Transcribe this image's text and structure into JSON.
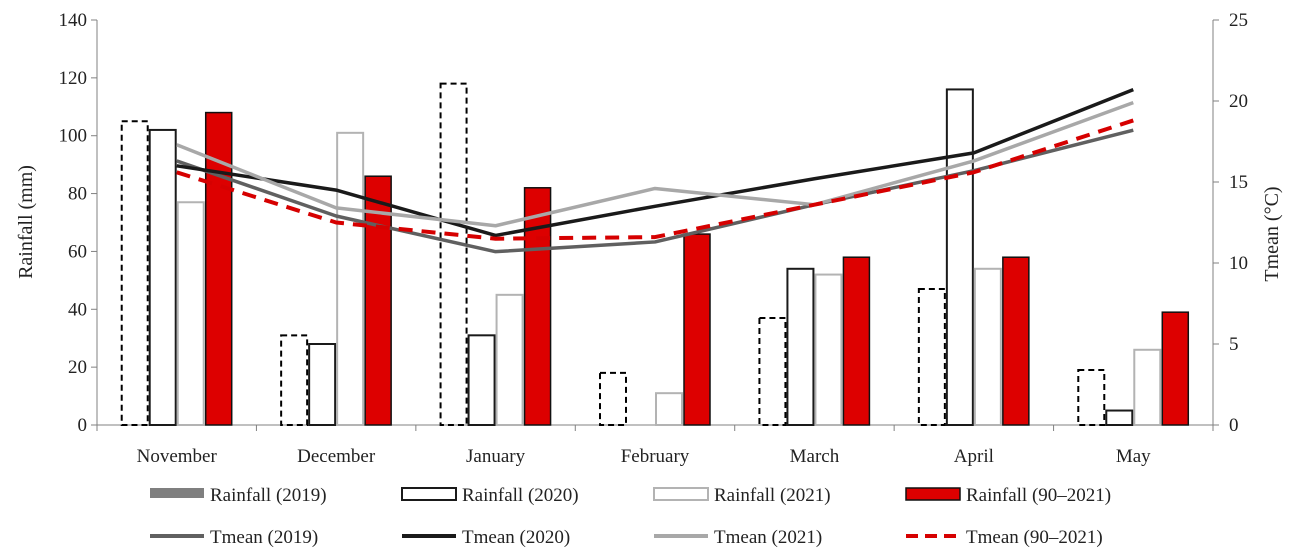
{
  "chart_data": {
    "type": "bar",
    "categories": [
      "November",
      "December",
      "January",
      "February",
      "March",
      "April",
      "May"
    ],
    "ylabel": "Rainfall (mm)",
    "ylim": [
      0,
      140
    ],
    "yticks": [
      0,
      20,
      40,
      60,
      80,
      100,
      120,
      140
    ],
    "y2label": "Tmean (°C)",
    "y2lim": [
      0,
      25
    ],
    "y2ticks": [
      0,
      5,
      10,
      15,
      20,
      25
    ],
    "grid": false,
    "legend_position": "bottom",
    "bar_series": [
      {
        "name": "Rainfall (2019)",
        "values": [
          105,
          31,
          118,
          18,
          37,
          47,
          19
        ],
        "style": "dashed-outline",
        "color": "#000000"
      },
      {
        "name": "Rainfall (2020)",
        "values": [
          102,
          28,
          31,
          0,
          54,
          116,
          5
        ],
        "style": "outline",
        "color": "#1a1a1a"
      },
      {
        "name": "Rainfall (2021)",
        "values": [
          77,
          101,
          45,
          11,
          52,
          54,
          26
        ],
        "style": "outline",
        "color": "#b3b3b3"
      },
      {
        "name": "Rainfall (90–2021)",
        "values": [
          108,
          86,
          82,
          66,
          58,
          58,
          39
        ],
        "style": "filled",
        "color": "#dd0000"
      }
    ],
    "line_series": [
      {
        "name": "Tmean (2019)",
        "values": [
          16.3,
          12.9,
          10.7,
          11.3,
          13.6,
          15.7,
          18.2
        ],
        "color": "#606060",
        "dashed": false
      },
      {
        "name": "Tmean (2020)",
        "values": [
          16.0,
          14.5,
          11.7,
          13.5,
          15.2,
          16.8,
          20.7
        ],
        "color": "#1a1a1a",
        "dashed": false
      },
      {
        "name": "Tmean (2021)",
        "values": [
          17.3,
          13.4,
          12.3,
          14.6,
          13.6,
          16.3,
          19.9
        ],
        "color": "#a8a8a8",
        "dashed": false
      },
      {
        "name": "Tmean (90–2021)",
        "values": [
          15.6,
          12.5,
          11.5,
          11.6,
          13.6,
          15.6,
          18.8
        ],
        "color": "#d60000",
        "dashed": true
      }
    ],
    "legend": [
      {
        "label": "Rainfall (2019)",
        "swatch": "bar-solid",
        "color": "#7f7f7f"
      },
      {
        "label": "Rainfall (2020)",
        "swatch": "bar-outline",
        "color": "#1a1a1a"
      },
      {
        "label": "Rainfall (2021)",
        "swatch": "bar-outline",
        "color": "#b3b3b3"
      },
      {
        "label": "Rainfall (90–2021)",
        "swatch": "bar-filled",
        "color": "#dd0000"
      },
      {
        "label": "Tmean (2019)",
        "swatch": "line",
        "color": "#606060"
      },
      {
        "label": "Tmean (2020)",
        "swatch": "line",
        "color": "#1a1a1a"
      },
      {
        "label": "Tmean (2021)",
        "swatch": "line",
        "color": "#a8a8a8"
      },
      {
        "label": "Tmean (90–2021)",
        "swatch": "line-dashed",
        "color": "#d60000"
      }
    ]
  }
}
